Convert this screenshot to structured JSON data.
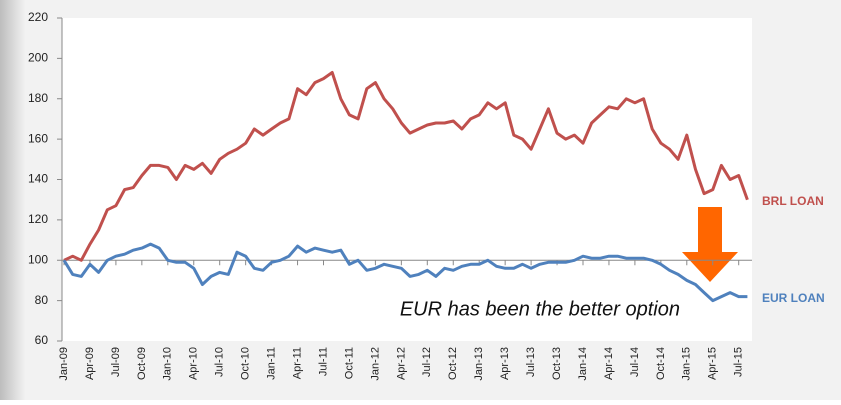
{
  "chart_data": {
    "type": "line",
    "categories": [
      "Jan-09",
      null,
      null,
      "Apr-09",
      null,
      null,
      "Jul-09",
      null,
      null,
      "Oct-09",
      null,
      null,
      "Jan-10",
      null,
      null,
      "Apr-10",
      null,
      null,
      "Jul-10",
      null,
      null,
      "Oct-10",
      null,
      null,
      "Jan-11",
      null,
      null,
      "Apr-11",
      null,
      null,
      "Jul-11",
      null,
      null,
      "Oct-11",
      null,
      null,
      "Jan-12",
      null,
      null,
      "Apr-12",
      null,
      null,
      "Jul-12",
      null,
      null,
      "Oct-12",
      null,
      null,
      "Jan-13",
      null,
      null,
      "Apr-13",
      null,
      null,
      "Jul-13",
      null,
      null,
      "Oct-13",
      null,
      null,
      "Jan-14",
      null,
      null,
      "Apr-14",
      null,
      null,
      "Jul-14",
      null,
      null,
      "Oct-14",
      null,
      null,
      "Jan-15",
      null,
      null,
      "Apr-15",
      null,
      null,
      "Jul-15",
      null
    ],
    "series": [
      {
        "name": "BRL LOAN",
        "color": "#c0504d",
        "values": [
          100,
          102,
          100,
          108,
          115,
          125,
          127,
          135,
          136,
          142,
          147,
          147,
          146,
          140,
          147,
          145,
          148,
          143,
          150,
          153,
          155,
          158,
          165,
          162,
          165,
          168,
          170,
          185,
          182,
          188,
          190,
          193,
          180,
          172,
          170,
          185,
          188,
          180,
          175,
          168,
          163,
          165,
          167,
          168,
          168,
          169,
          165,
          170,
          172,
          178,
          175,
          178,
          162,
          160,
          155,
          165,
          175,
          163,
          160,
          162,
          158,
          168,
          172,
          176,
          175,
          180,
          178,
          180,
          165,
          158,
          155,
          150,
          162,
          145,
          133,
          135,
          147,
          140,
          142,
          130
        ]
      },
      {
        "name": "EUR LOAN",
        "color": "#4f81bd",
        "values": [
          100,
          93,
          92,
          98,
          94,
          100,
          102,
          103,
          105,
          106,
          108,
          106,
          100,
          99,
          99,
          96,
          88,
          92,
          94,
          93,
          104,
          102,
          96,
          95,
          99,
          100,
          102,
          107,
          104,
          106,
          105,
          104,
          105,
          98,
          100,
          95,
          96,
          98,
          97,
          96,
          92,
          93,
          95,
          92,
          96,
          95,
          97,
          98,
          98,
          100,
          97,
          96,
          96,
          98,
          96,
          98,
          99,
          99,
          99,
          100,
          102,
          101,
          101,
          102,
          102,
          101,
          101,
          101,
          100,
          98,
          95,
          93,
          90,
          88,
          84,
          80,
          82,
          84,
          82,
          82
        ]
      }
    ],
    "annotation": "EUR has been the better option",
    "ylim": [
      60,
      220
    ],
    "yticks": [
      60,
      80,
      100,
      120,
      140,
      160,
      180,
      200,
      220
    ],
    "x_axis_at": 100,
    "grid": false
  }
}
